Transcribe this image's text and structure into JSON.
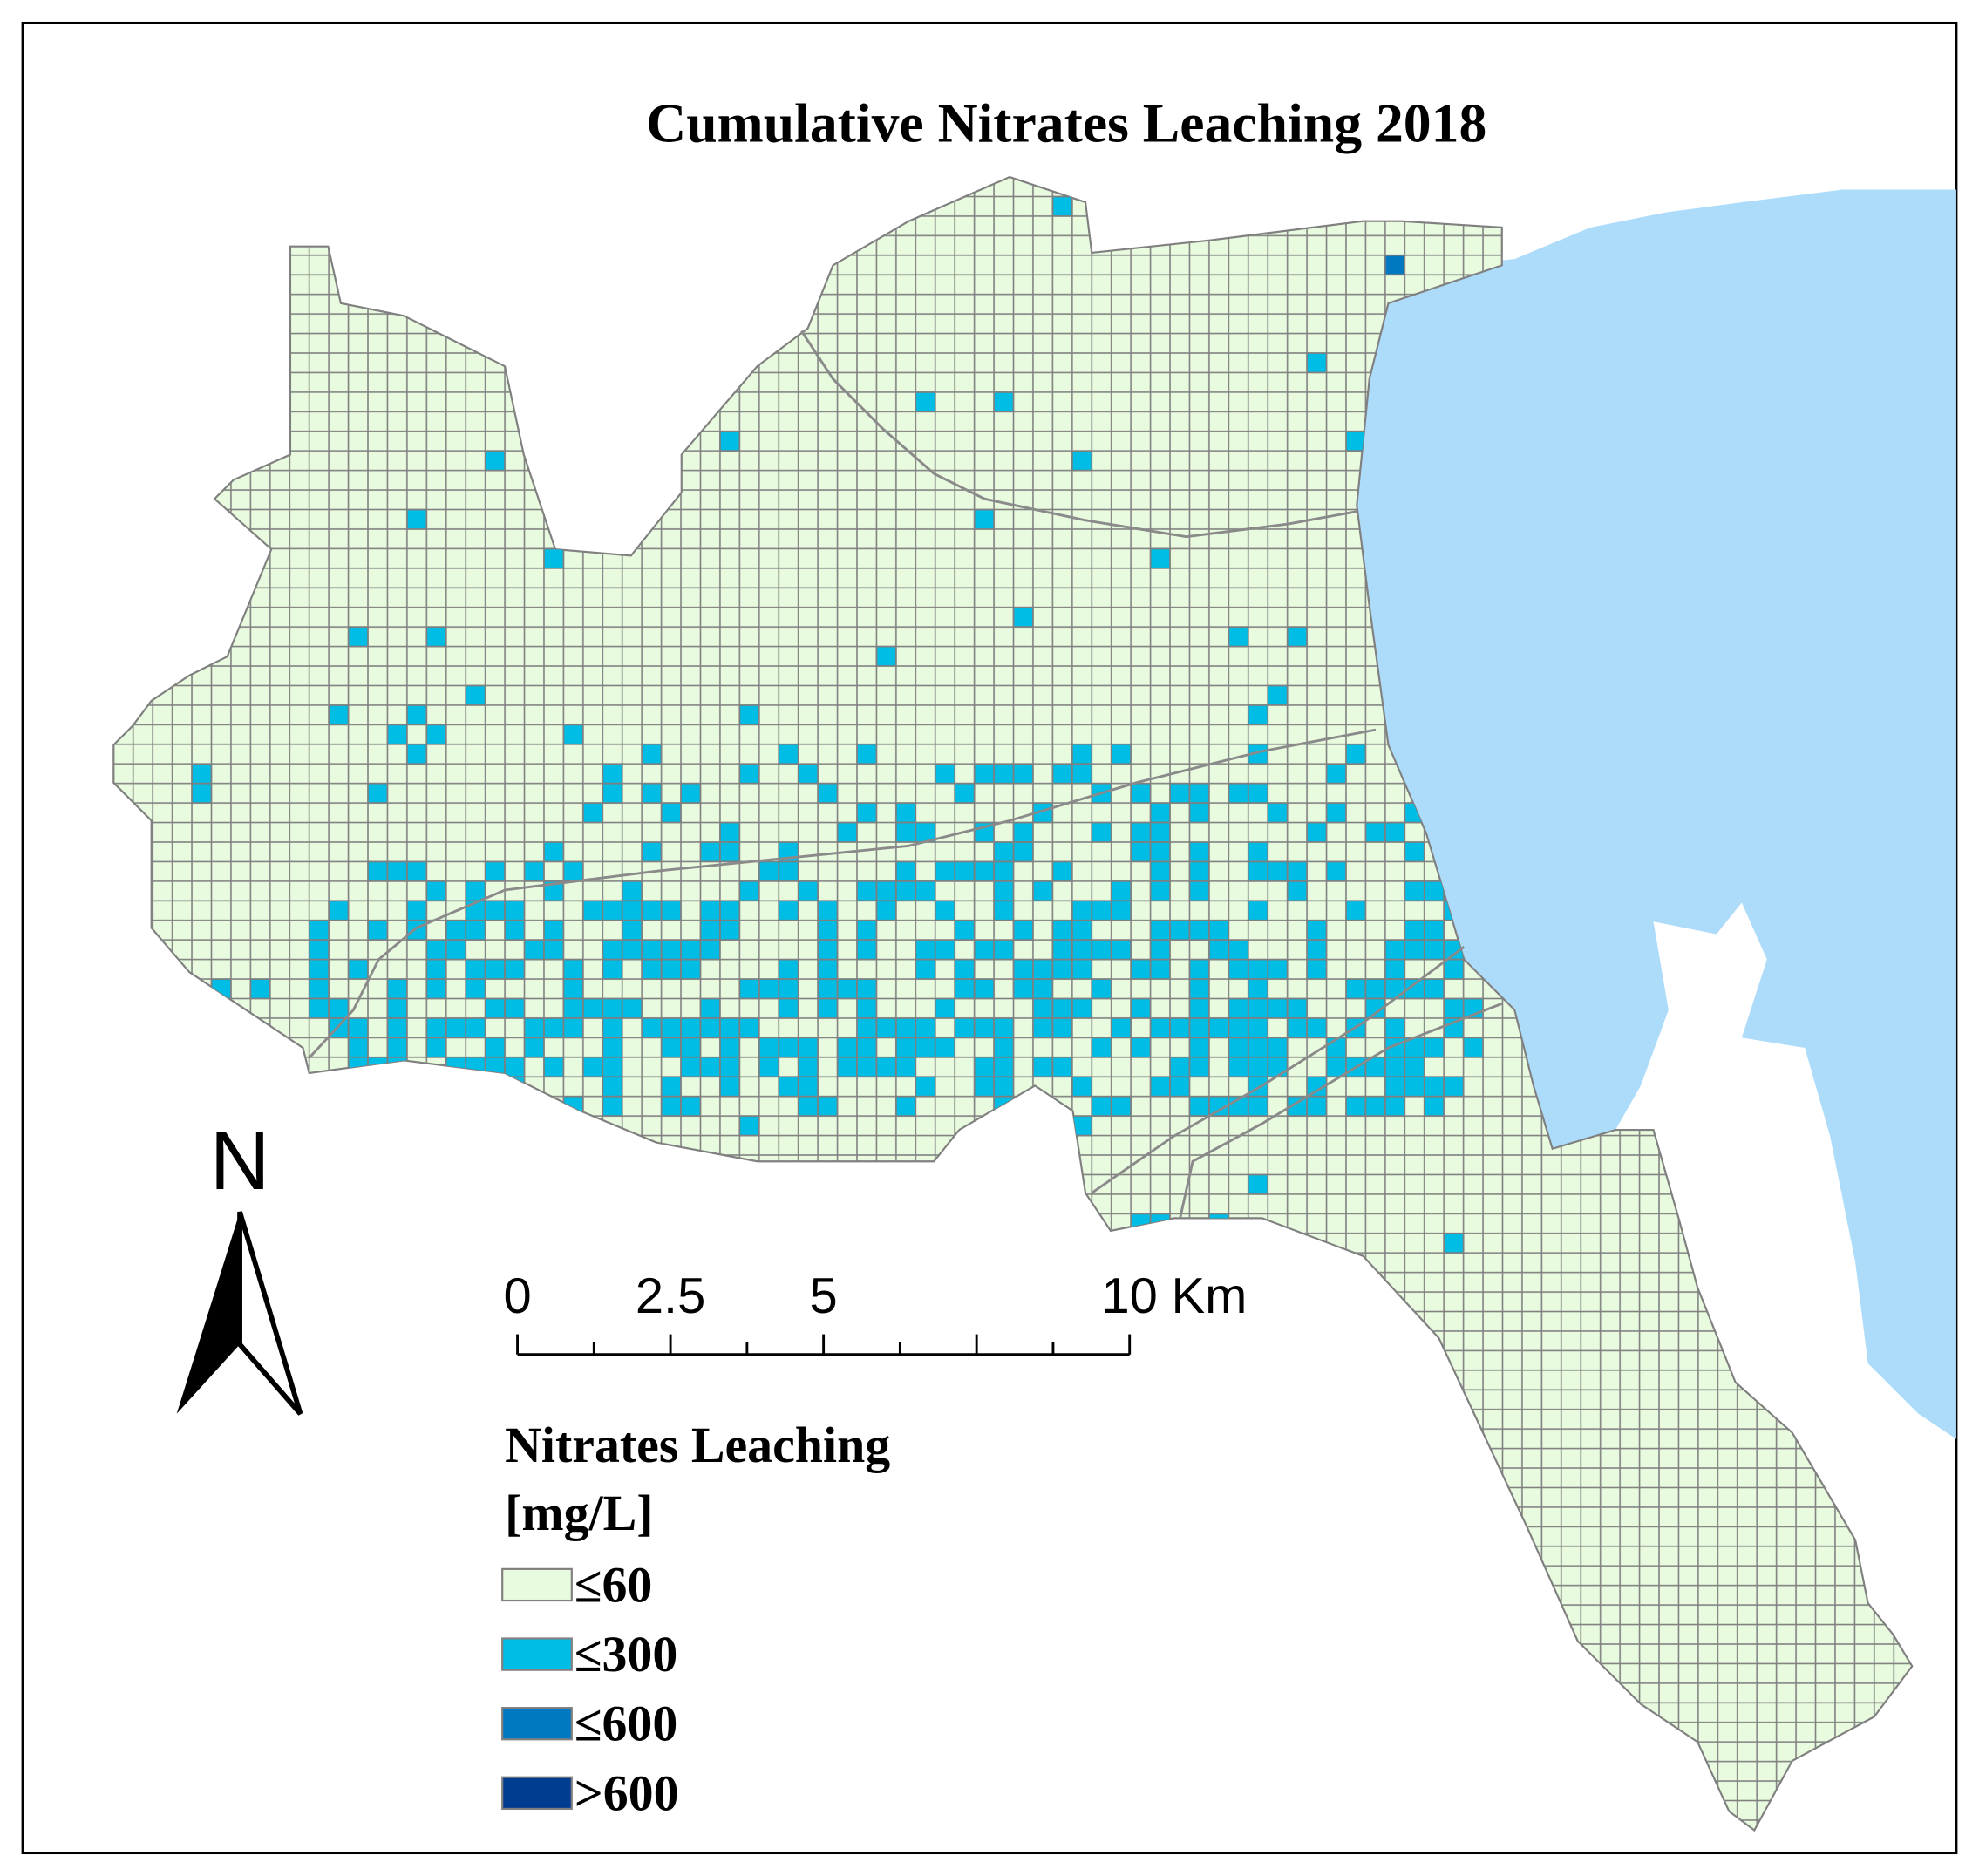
{
  "map": {
    "title": "Cumulative Nitrates Leaching 2018",
    "north": "N",
    "scale_bar": {
      "labels": [
        "0",
        "2.5",
        "5",
        "10"
      ],
      "unit": "Km"
    },
    "legend": {
      "title": "Nitrates Leaching",
      "unit": "[mg/L]",
      "items": [
        {
          "label": "≤60",
          "color": "#e8fbdf"
        },
        {
          "label": "≤300",
          "color": "#00bde6"
        },
        {
          "label": "≤600",
          "color": "#0078c2"
        },
        {
          "label": ">600",
          "color": "#003c8f"
        }
      ]
    }
  }
}
